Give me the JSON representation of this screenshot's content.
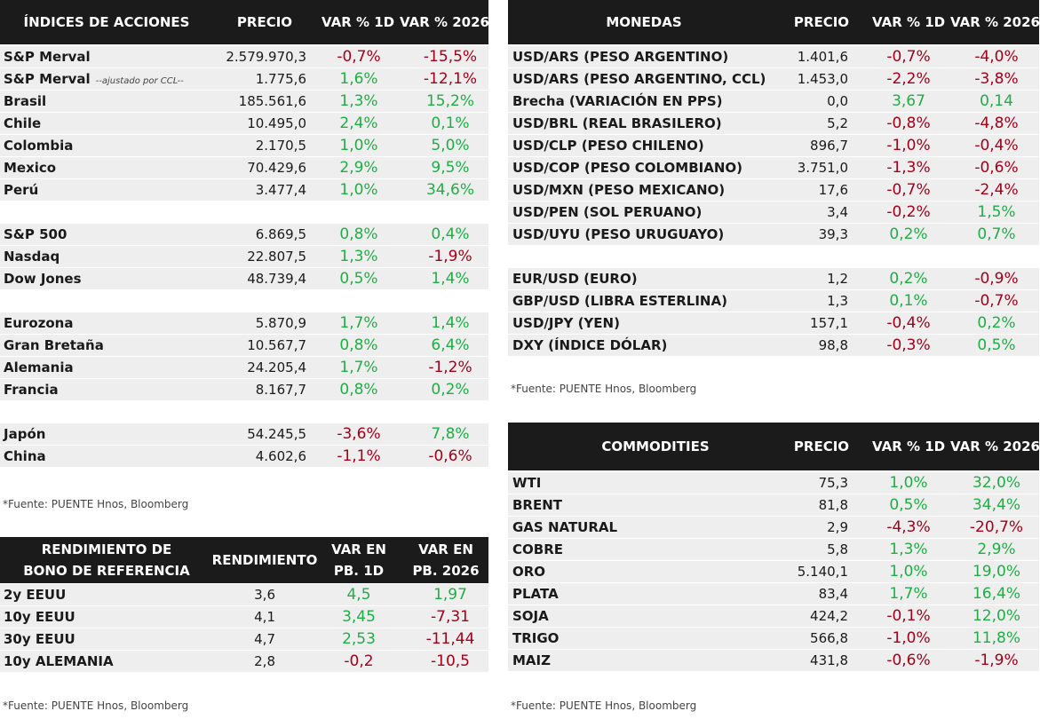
{
  "indices": {
    "header": [
      "ÍNDICES DE ACCIONES",
      "PRECIO",
      "VAR % 1D",
      "VAR % 2026"
    ],
    "groups": [
      [
        {
          "name": "S&P Merval",
          "price": "2.579.970,3",
          "var_1d": "-0,7%",
          "var_2026": "-15,5%"
        },
        {
          "name": "S&P Merval",
          "note": "--ajustado por CCL--",
          "price": "1.775,6",
          "var_1d": "1,6%",
          "var_2026": "-12,1%"
        },
        {
          "name": "Brasil",
          "price": "185.561,6",
          "var_1d": "1,3%",
          "var_2026": "15,2%"
        },
        {
          "name": "Chile",
          "price": "10.495,0",
          "var_1d": "2,4%",
          "var_2026": "0,1%"
        },
        {
          "name": "Colombia",
          "price": "2.170,5",
          "var_1d": "1,0%",
          "var_2026": "5,0%"
        },
        {
          "name": "Mexico",
          "price": "70.429,6",
          "var_1d": "2,9%",
          "var_2026": "9,5%"
        },
        {
          "name": "Perú",
          "price": "3.477,4",
          "var_1d": "1,0%",
          "var_2026": "34,6%"
        }
      ],
      [
        {
          "name": "S&P 500",
          "price": "6.869,5",
          "var_1d": "0,8%",
          "var_2026": "0,4%"
        },
        {
          "name": "Nasdaq",
          "price": "22.807,5",
          "var_1d": "1,3%",
          "var_2026": "-1,9%"
        },
        {
          "name": "Dow Jones",
          "price": "48.739,4",
          "var_1d": "0,5%",
          "var_2026": "1,4%"
        }
      ],
      [
        {
          "name": "Eurozona",
          "price": "5.870,9",
          "var_1d": "1,7%",
          "var_2026": "1,4%"
        },
        {
          "name": "Gran Bretaña",
          "price": "10.567,7",
          "var_1d": "0,8%",
          "var_2026": "6,4%"
        },
        {
          "name": "Alemania",
          "price": "24.205,4",
          "var_1d": "1,7%",
          "var_2026": "-1,2%"
        },
        {
          "name": "Francia",
          "price": "8.167,7",
          "var_1d": "0,8%",
          "var_2026": "0,2%"
        }
      ],
      [
        {
          "name": "Japón",
          "price": "54.245,5",
          "var_1d": "-3,6%",
          "var_2026": "7,8%"
        },
        {
          "name": "China",
          "price": "4.602,6",
          "var_1d": "-1,1%",
          "var_2026": "-0,6%"
        }
      ]
    ],
    "footnote": "*Fuente: PUENTE Hnos, Bloomberg"
  },
  "bonos": {
    "header": [
      [
        "RENDIMIENTO DE",
        "BONO DE REFERENCIA"
      ],
      [
        "RENDIMIENTO"
      ],
      [
        "VAR EN",
        "PB. 1D"
      ],
      [
        "VAR EN",
        "PB. 2026"
      ]
    ],
    "groups": [
      [
        {
          "name": "2y EEUU",
          "price": "3,6",
          "var_1d": "4,5",
          "var_2026": "1,97"
        },
        {
          "name": "10y EEUU",
          "price": "4,1",
          "var_1d": "3,45",
          "var_2026": "-7,31"
        },
        {
          "name": "30y EEUU",
          "price": "4,7",
          "var_1d": "2,53",
          "var_2026": "-11,44"
        },
        {
          "name": "10y ALEMANIA",
          "price": "2,8",
          "var_1d": "-0,2",
          "var_2026": "-10,5"
        }
      ]
    ],
    "footnote": "*Fuente: PUENTE Hnos, Bloomberg"
  },
  "monedas": {
    "header": [
      "MONEDAS",
      "PRECIO",
      "VAR % 1D",
      "VAR % 2026"
    ],
    "groups": [
      [
        {
          "name": "USD/ARS (PESO ARGENTINO)",
          "price": "1.401,6",
          "var_1d": "-0,7%",
          "var_2026": "-4,0%"
        },
        {
          "name": "USD/ARS (PESO ARGENTINO, CCL)",
          "price": "1.453,0",
          "var_1d": "-2,2%",
          "var_2026": "-3,8%"
        },
        {
          "name": "Brecha (VARIACIÓN EN PPS)",
          "price": "0,0",
          "var_1d": "3,67",
          "var_2026": "0,14"
        },
        {
          "name": "USD/BRL (REAL BRASILERO)",
          "price": "5,2",
          "var_1d": "-0,8%",
          "var_2026": "-4,8%"
        },
        {
          "name": "USD/CLP (PESO CHILENO)",
          "price": "896,7",
          "var_1d": "-1,0%",
          "var_2026": "-0,4%"
        },
        {
          "name": "USD/COP (PESO COLOMBIANO)",
          "price": "3.751,0",
          "var_1d": "-1,3%",
          "var_2026": "-0,6%"
        },
        {
          "name": "USD/MXN (PESO MEXICANO)",
          "price": "17,6",
          "var_1d": "-0,7%",
          "var_2026": "-2,4%"
        },
        {
          "name": "USD/PEN (SOL PERUANO)",
          "price": "3,4",
          "var_1d": "-0,2%",
          "var_2026": "1,5%"
        },
        {
          "name": "USD/UYU (PESO URUGUAYO)",
          "price": "39,3",
          "var_1d": "0,2%",
          "var_2026": "0,7%"
        }
      ],
      [
        {
          "name": "EUR/USD (EURO)",
          "price": "1,2",
          "var_1d": "0,2%",
          "var_2026": "-0,9%"
        },
        {
          "name": "GBP/USD (LIBRA ESTERLINA)",
          "price": "1,3",
          "var_1d": "0,1%",
          "var_2026": "-0,7%"
        },
        {
          "name": "USD/JPY (YEN)",
          "price": "157,1",
          "var_1d": "-0,4%",
          "var_2026": "0,2%"
        },
        {
          "name": "DXY (ÍNDICE DÓLAR)",
          "price": "98,8",
          "var_1d": "-0,3%",
          "var_2026": "0,5%"
        }
      ]
    ],
    "footnote": "*Fuente: PUENTE Hnos, Bloomberg"
  },
  "commodities": {
    "header": [
      "COMMODITIES",
      "PRECIO",
      "VAR % 1D",
      "VAR % 2026"
    ],
    "groups": [
      [
        {
          "name": "WTI",
          "price": "75,3",
          "var_1d": "1,0%",
          "var_2026": "32,0%"
        },
        {
          "name": "BRENT",
          "price": "81,8",
          "var_1d": "0,5%",
          "var_2026": "34,4%"
        },
        {
          "name": "GAS NATURAL",
          "price": "2,9",
          "var_1d": "-4,3%",
          "var_2026": "-20,7%"
        },
        {
          "name": "COBRE",
          "price": "5,8",
          "var_1d": "1,3%",
          "var_2026": "2,9%"
        },
        {
          "name": "ORO",
          "price": "5.140,1",
          "var_1d": "1,0%",
          "var_2026": "19,0%"
        },
        {
          "name": "PLATA",
          "price": "83,4",
          "var_1d": "1,7%",
          "var_2026": "16,4%"
        },
        {
          "name": "SOJA",
          "price": "424,2",
          "var_1d": "-0,1%",
          "var_2026": "12,0%"
        },
        {
          "name": "TRIGO",
          "price": "566,8",
          "var_1d": "-1,0%",
          "var_2026": "11,8%"
        },
        {
          "name": "MAIZ",
          "price": "431,8",
          "var_1d": "-0,6%",
          "var_2026": "-1,9%"
        }
      ]
    ],
    "footnote": "*Fuente: PUENTE Hnos, Bloomberg"
  }
}
